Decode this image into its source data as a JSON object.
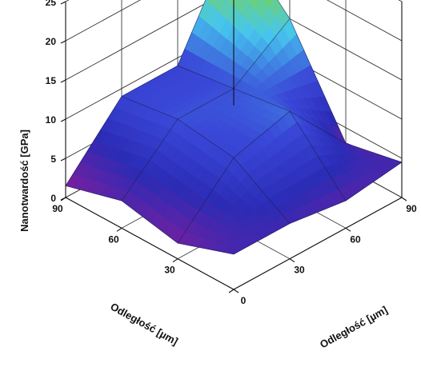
{
  "chart_data": {
    "type": "surface3d",
    "xlabel": "Odległość [µm]",
    "ylabel": "Odległość [µm]",
    "zlabel": "Nanotwardość [GPa]",
    "x_ticks": [
      "0",
      "30",
      "60",
      "90"
    ],
    "y_ticks": [
      "0",
      "30",
      "60",
      "90"
    ],
    "z_ticks": [
      "0",
      "5",
      "10",
      "15",
      "20",
      "25"
    ],
    "x": [
      0,
      30,
      60,
      90
    ],
    "y": [
      0,
      30,
      60,
      90
    ],
    "zlim": [
      0,
      25
    ],
    "z": [
      [
        4.5,
        4.5,
        3.5,
        4.5
      ],
      [
        2.0,
        9.0,
        11.0,
        3.0
      ],
      [
        3.5,
        10.0,
        10.0,
        15.0
      ],
      [
        1.5,
        9.0,
        9.0,
        22.0
      ]
    ],
    "grid": true,
    "colorscale": [
      "#7a1f9e",
      "#2b2bb5",
      "#3a48d8",
      "#46c6ee",
      "#7ad64a",
      "#f2f02a"
    ]
  }
}
